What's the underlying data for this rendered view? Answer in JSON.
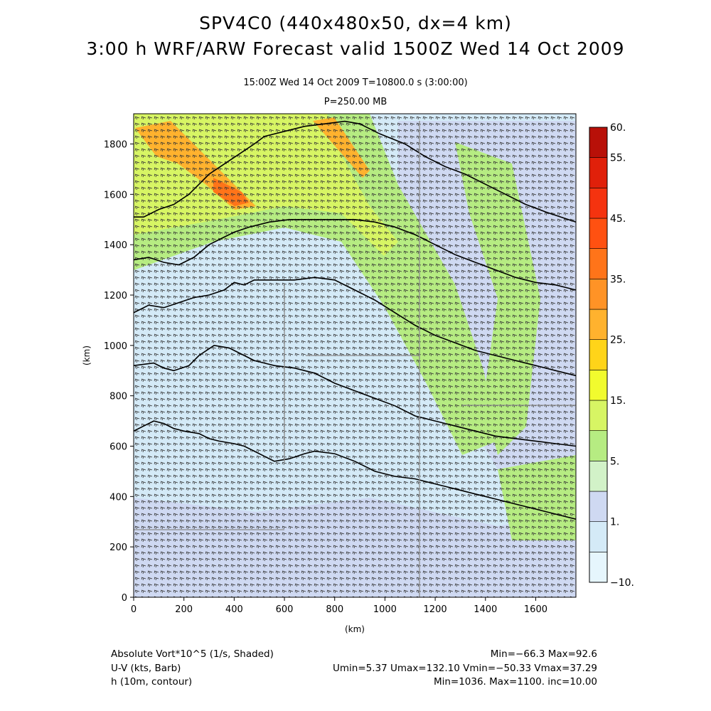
{
  "title": {
    "line1": "SPV4C0 (440x480x50, dx=4 km)",
    "line2": "3:00 h WRF/ARW Forecast valid 1500Z Wed 14 Oct 2009"
  },
  "subtitle": {
    "time": "15:00Z Wed 14 Oct 2009     T=10800.0 s (3:00:00)",
    "level": "P=250.00 MB"
  },
  "chart_data": {
    "type": "heatmap",
    "xlabel": "(km)",
    "ylabel": "(km)",
    "xlim": [
      0,
      1760
    ],
    "ylim": [
      0,
      1920
    ],
    "x_ticks": [
      0,
      200,
      400,
      600,
      800,
      1000,
      1200,
      1400,
      1600
    ],
    "y_ticks": [
      0,
      200,
      400,
      600,
      800,
      1000,
      1200,
      1400,
      1600,
      1800
    ],
    "colorbar": {
      "bands": [
        {
          "from": -10,
          "to": -5,
          "color": "#e6f6fd"
        },
        {
          "from": -5,
          "to": 1,
          "color": "#d4eaf7"
        },
        {
          "from": 1,
          "to": 3,
          "color": "#cfd9f2"
        },
        {
          "from": 3,
          "to": 5,
          "color": "#d2f2c8"
        },
        {
          "from": 5,
          "to": 10,
          "color": "#b6ec82"
        },
        {
          "from": 10,
          "to": 15,
          "color": "#d7f564"
        },
        {
          "from": 15,
          "to": 20,
          "color": "#f1fb2e"
        },
        {
          "from": 20,
          "to": 25,
          "color": "#ffd419"
        },
        {
          "from": 25,
          "to": 30,
          "color": "#ffb22e"
        },
        {
          "from": 30,
          "to": 35,
          "color": "#ff9326"
        },
        {
          "from": 35,
          "to": 40,
          "color": "#ff7419"
        },
        {
          "from": 40,
          "to": 45,
          "color": "#ff5111"
        },
        {
          "from": 45,
          "to": 50,
          "color": "#f5330f"
        },
        {
          "from": 50,
          "to": 55,
          "color": "#e0200a"
        },
        {
          "from": 55,
          "to": 60,
          "color": "#b81008"
        }
      ],
      "labels": [
        {
          "value": 60,
          "text": "60."
        },
        {
          "value": 55,
          "text": "55."
        },
        {
          "value": 45,
          "text": "45."
        },
        {
          "value": 35,
          "text": "35."
        },
        {
          "value": 25,
          "text": "25."
        },
        {
          "value": 15,
          "text": "15."
        },
        {
          "value": 5,
          "text": "5."
        },
        {
          "value": 1,
          "text": "1."
        },
        {
          "value": -10,
          "text": "−10."
        }
      ]
    },
    "contours_h_km": [
      [
        [
          0,
          660
        ],
        [
          40,
          680
        ],
        [
          80,
          700
        ],
        [
          120,
          690
        ],
        [
          160,
          670
        ],
        [
          200,
          660
        ],
        [
          260,
          650
        ],
        [
          300,
          630
        ],
        [
          340,
          620
        ],
        [
          400,
          610
        ],
        [
          440,
          600
        ],
        [
          520,
          560
        ],
        [
          560,
          540
        ],
        [
          620,
          550
        ],
        [
          680,
          570
        ],
        [
          720,
          580
        ],
        [
          800,
          570
        ],
        [
          880,
          540
        ],
        [
          960,
          500
        ],
        [
          1040,
          480
        ],
        [
          1120,
          470
        ],
        [
          1200,
          450
        ],
        [
          1280,
          430
        ],
        [
          1360,
          410
        ],
        [
          1440,
          390
        ],
        [
          1520,
          370
        ],
        [
          1600,
          350
        ],
        [
          1680,
          330
        ],
        [
          1760,
          310
        ]
      ],
      [
        [
          0,
          920
        ],
        [
          80,
          930
        ],
        [
          120,
          910
        ],
        [
          160,
          900
        ],
        [
          220,
          920
        ],
        [
          260,
          960
        ],
        [
          320,
          1000
        ],
        [
          380,
          990
        ],
        [
          440,
          960
        ],
        [
          480,
          940
        ],
        [
          560,
          920
        ],
        [
          640,
          910
        ],
        [
          720,
          890
        ],
        [
          800,
          850
        ],
        [
          880,
          820
        ],
        [
          960,
          790
        ],
        [
          1040,
          760
        ],
        [
          1120,
          720
        ],
        [
          1200,
          700
        ],
        [
          1280,
          680
        ],
        [
          1360,
          660
        ],
        [
          1440,
          640
        ],
        [
          1520,
          630
        ],
        [
          1600,
          620
        ],
        [
          1680,
          610
        ],
        [
          1760,
          600
        ]
      ],
      [
        [
          0,
          1130
        ],
        [
          60,
          1160
        ],
        [
          120,
          1150
        ],
        [
          180,
          1170
        ],
        [
          240,
          1190
        ],
        [
          300,
          1200
        ],
        [
          360,
          1220
        ],
        [
          400,
          1250
        ],
        [
          440,
          1240
        ],
        [
          480,
          1260
        ],
        [
          560,
          1260
        ],
        [
          640,
          1260
        ],
        [
          720,
          1270
        ],
        [
          800,
          1260
        ],
        [
          880,
          1220
        ],
        [
          960,
          1180
        ],
        [
          1040,
          1130
        ],
        [
          1120,
          1080
        ],
        [
          1200,
          1040
        ],
        [
          1280,
          1010
        ],
        [
          1360,
          980
        ],
        [
          1440,
          960
        ],
        [
          1520,
          940
        ],
        [
          1600,
          920
        ],
        [
          1680,
          900
        ],
        [
          1760,
          880
        ]
      ],
      [
        [
          0,
          1340
        ],
        [
          60,
          1350
        ],
        [
          120,
          1330
        ],
        [
          180,
          1320
        ],
        [
          240,
          1350
        ],
        [
          300,
          1400
        ],
        [
          360,
          1430
        ],
        [
          400,
          1450
        ],
        [
          460,
          1470
        ],
        [
          540,
          1490
        ],
        [
          620,
          1500
        ],
        [
          720,
          1500
        ],
        [
          800,
          1500
        ],
        [
          880,
          1500
        ],
        [
          960,
          1490
        ],
        [
          1040,
          1470
        ],
        [
          1120,
          1440
        ],
        [
          1200,
          1400
        ],
        [
          1280,
          1360
        ],
        [
          1360,
          1330
        ],
        [
          1440,
          1300
        ],
        [
          1520,
          1270
        ],
        [
          1600,
          1250
        ],
        [
          1680,
          1240
        ],
        [
          1760,
          1220
        ]
      ],
      [
        [
          0,
          1510
        ],
        [
          40,
          1510
        ],
        [
          100,
          1540
        ],
        [
          160,
          1560
        ],
        [
          220,
          1600
        ],
        [
          260,
          1640
        ],
        [
          300,
          1680
        ],
        [
          360,
          1720
        ],
        [
          420,
          1760
        ],
        [
          480,
          1800
        ],
        [
          520,
          1830
        ],
        [
          600,
          1850
        ],
        [
          680,
          1870
        ],
        [
          760,
          1880
        ],
        [
          840,
          1890
        ],
        [
          900,
          1880
        ],
        [
          980,
          1840
        ],
        [
          1080,
          1800
        ],
        [
          1160,
          1750
        ],
        [
          1240,
          1710
        ],
        [
          1320,
          1680
        ],
        [
          1400,
          1640
        ],
        [
          1480,
          1600
        ],
        [
          1560,
          1560
        ],
        [
          1640,
          1530
        ],
        [
          1700,
          1510
        ],
        [
          1760,
          1490
        ]
      ]
    ]
  },
  "footer": {
    "field1": "Absolute Vort*10^5 (1/s, Shaded)",
    "field2": "U-V (kts, Barb)",
    "field3": "h (10m, contour)",
    "stats1": "Min=−66.3 Max=92.6",
    "stats2": "Umin=5.37 Umax=132.10 Vmin=−50.33 Vmax=37.29",
    "stats3": "Min=1036. Max=1100. inc=10.00"
  }
}
